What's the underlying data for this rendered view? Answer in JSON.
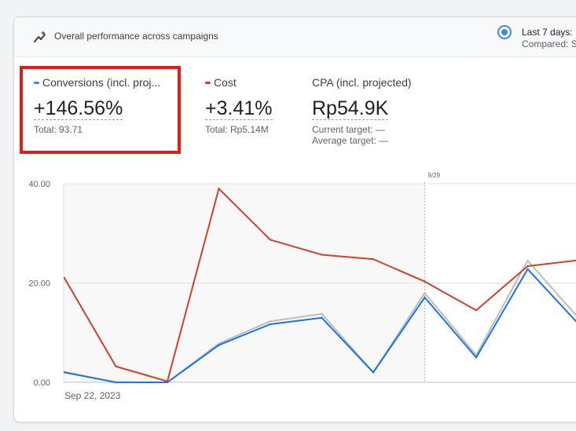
{
  "header": {
    "title": "Overall performance across campaigns",
    "icon": "sparkline-icon",
    "date_range": "Last 7 days:",
    "compared": "Compared: S"
  },
  "metrics": [
    {
      "label": "Conversions (incl. proj...",
      "value": "+146.56%",
      "sub": "Total: 93.71",
      "color": "#4285f4"
    },
    {
      "label": "Cost",
      "value": "+3.41%",
      "sub": "Total: Rp5.14M",
      "color": "#d23f31"
    },
    {
      "label": "CPA (incl. projected)",
      "value": "Rp54.9K",
      "current_target": "Current target: —",
      "average_target": "Average target: —"
    }
  ],
  "colors": {
    "accent": "#4285f4",
    "highlight": "#e21b1b",
    "conversions": "#1a73e8",
    "cost": "#d23f31",
    "comparison": "#bdbdbd"
  },
  "chart_data": {
    "type": "line",
    "x_start_label": "Sep 22, 2023",
    "marker_label": "9/29",
    "marker_index": 7,
    "yticks": [
      "0.00",
      "20.00",
      "40.00"
    ],
    "ylim": [
      0,
      40
    ],
    "grid": true,
    "series": [
      {
        "name": "Cost",
        "color": "#d23f31",
        "values": [
          21.0,
          3.2,
          0.2,
          39.0,
          28.7,
          25.7,
          24.8,
          20.3,
          14.5,
          23.4,
          24.6
        ]
      },
      {
        "name": "Conversions (incl. proj...",
        "color": "#1a73e8",
        "values": [
          2.0,
          0.0,
          0.0,
          7.5,
          11.7,
          13.0,
          2.0,
          17.1,
          5.0,
          22.8,
          11.6
        ]
      },
      {
        "color": "#bdbdbd",
        "values": [
          2.1,
          0.0,
          0.0,
          7.8,
          12.3,
          13.8,
          2.0,
          18.0,
          5.5,
          24.5,
          12.8
        ]
      }
    ]
  }
}
